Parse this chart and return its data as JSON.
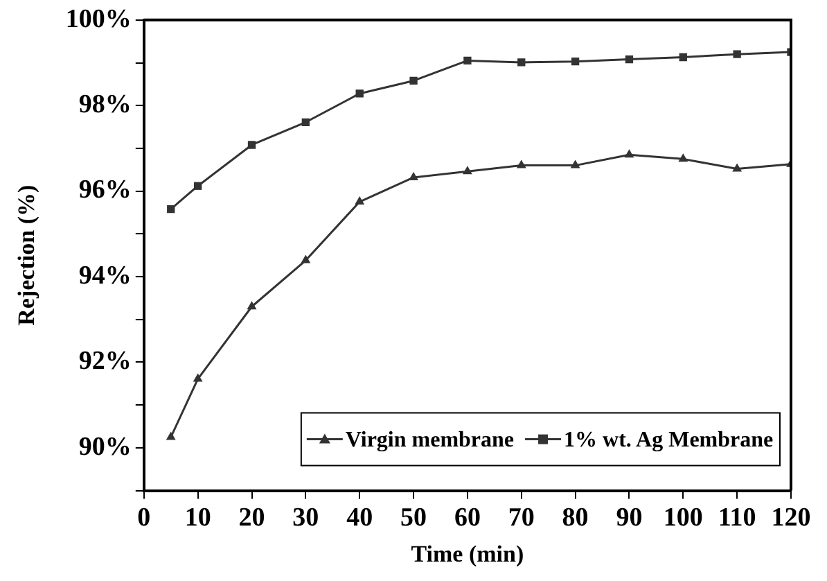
{
  "chart_data": {
    "type": "line",
    "xlabel": "Time (min)",
    "ylabel": "Rejection (%)",
    "x": [
      5,
      10,
      20,
      30,
      40,
      50,
      60,
      70,
      80,
      90,
      100,
      110,
      120
    ],
    "series": [
      {
        "name": "Virgin membrane",
        "color": "#333333",
        "marker": "triangle",
        "values": [
          90.25,
          91.61,
          93.3,
          94.38,
          95.75,
          96.32,
          96.46,
          96.6,
          96.6,
          96.85,
          96.75,
          96.52,
          96.63
        ]
      },
      {
        "name": "1% wt. Ag Membrane",
        "color": "#333333",
        "marker": "square",
        "values": [
          95.58,
          96.12,
          97.08,
          97.61,
          98.28,
          98.58,
          99.05,
          99.01,
          99.03,
          99.08,
          99.13,
          99.2,
          99.25
        ]
      }
    ],
    "xlim": [
      0,
      120
    ],
    "xticks": [
      0,
      10,
      20,
      30,
      40,
      50,
      60,
      70,
      80,
      90,
      100,
      110,
      120
    ],
    "ylim": [
      89,
      100
    ],
    "yticks": [
      {
        "value": 89,
        "label": null
      },
      {
        "value": 90,
        "label": "90%"
      },
      {
        "value": 91,
        "label": null
      },
      {
        "value": 92,
        "label": "92%"
      },
      {
        "value": 93,
        "label": null
      },
      {
        "value": 94,
        "label": "94%"
      },
      {
        "value": 95,
        "label": null
      },
      {
        "value": 96,
        "label": "96%"
      },
      {
        "value": 97,
        "label": null
      },
      {
        "value": 98,
        "label": "98%"
      },
      {
        "value": 99,
        "label": null
      },
      {
        "value": 100,
        "label": "100%"
      }
    ],
    "grid": false,
    "legend": "bottom right",
    "line_style": "solid"
  }
}
